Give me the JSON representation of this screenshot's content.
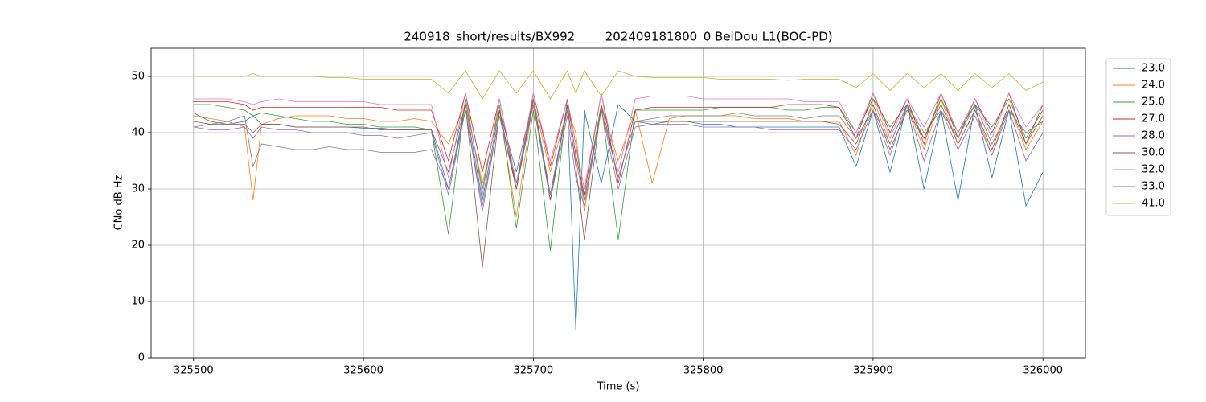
{
  "chart_data": {
    "type": "line",
    "title": "240918_short/results/BX992_____202409181800_0 BeiDou L1(BOC-PD)",
    "x_label": "Time (s)",
    "y_label": "CNo dB Hz",
    "xlim": [
      325475,
      326025
    ],
    "ylim": [
      0,
      55
    ],
    "xticks": [
      325500,
      325600,
      325700,
      325800,
      325900,
      326000
    ],
    "yticks": [
      0,
      10,
      20,
      30,
      40,
      50
    ],
    "grid": true,
    "legend": "outside-upper-right",
    "x": [
      325500,
      325510,
      325520,
      325530,
      325535,
      325540,
      325550,
      325560,
      325570,
      325580,
      325590,
      325600,
      325610,
      325620,
      325630,
      325640,
      325650,
      325660,
      325670,
      325680,
      325690,
      325700,
      325710,
      325720,
      325725,
      325730,
      325740,
      325750,
      325760,
      325770,
      325780,
      325790,
      325800,
      325810,
      325820,
      325830,
      325840,
      325850,
      325860,
      325870,
      325880,
      325890,
      325900,
      325910,
      325920,
      325930,
      325940,
      325950,
      325960,
      325970,
      325980,
      325990,
      326000
    ],
    "series": [
      {
        "name": "23.0",
        "color": "#1f77b4",
        "values": [
          43.5,
          42,
          41.5,
          42,
          43,
          41.5,
          41.5,
          41,
          41,
          41,
          41,
          40.8,
          40.8,
          40.5,
          40.5,
          40.5,
          30,
          45,
          28,
          44,
          33,
          46,
          29,
          45,
          5,
          44,
          31,
          45,
          42,
          41.5,
          42,
          42,
          41.5,
          41.5,
          41,
          41,
          41,
          41,
          41,
          41,
          41,
          34,
          44,
          33,
          45,
          30,
          44,
          28,
          45,
          32,
          44,
          27,
          33
        ]
      },
      {
        "name": "24.0",
        "color": "#ff7f0e",
        "values": [
          43,
          42.5,
          42,
          41,
          28,
          41.5,
          42.5,
          43,
          43,
          43,
          42.5,
          42.5,
          42,
          42,
          42.5,
          42,
          38,
          45,
          31,
          44,
          25,
          46,
          33,
          44,
          40,
          26,
          45,
          35,
          44,
          31,
          42.5,
          43,
          43,
          43,
          43,
          42.5,
          42.5,
          42.5,
          42,
          42,
          42,
          36,
          46,
          38,
          45,
          37,
          46,
          38,
          44,
          36,
          45,
          37,
          42
        ]
      },
      {
        "name": "25.0",
        "color": "#2ca02c",
        "values": [
          45,
          45,
          44.5,
          44,
          43,
          43.5,
          43,
          42.5,
          42,
          42,
          41.5,
          41.5,
          41,
          41,
          41,
          40.5,
          22,
          46,
          30,
          45,
          23,
          44,
          19,
          46,
          38,
          28,
          45,
          21,
          44,
          44,
          44,
          44,
          44,
          44.5,
          44.5,
          44.5,
          44.5,
          44,
          44,
          44.5,
          44.5,
          40,
          46,
          41,
          45,
          39,
          46,
          40,
          45,
          41,
          46,
          39,
          44
        ]
      },
      {
        "name": "27.0",
        "color": "#d62728",
        "values": [
          45.5,
          45.5,
          45.5,
          45,
          44,
          44.5,
          44.5,
          44.5,
          44.5,
          44.5,
          44.5,
          44.5,
          44.5,
          44,
          44,
          44,
          35,
          47,
          33,
          46,
          30,
          47,
          34,
          46,
          36,
          29,
          47,
          31,
          44,
          44.5,
          44.5,
          44.5,
          44.5,
          44.5,
          44.5,
          44.5,
          44.5,
          45,
          45,
          45,
          44.5,
          39,
          47,
          40,
          46,
          38,
          47,
          39,
          46,
          40,
          47,
          38,
          45
        ]
      },
      {
        "name": "28.0",
        "color": "#9467bd",
        "values": [
          41,
          40.5,
          40.5,
          41,
          39,
          41,
          40.5,
          40.5,
          40,
          40,
          40,
          39.5,
          39.5,
          39,
          39.5,
          40,
          29,
          44,
          26,
          43,
          30,
          45,
          28,
          43,
          32,
          27,
          44,
          30,
          41,
          41.5,
          41.5,
          41.5,
          41,
          41,
          41,
          41,
          40.5,
          40.5,
          40.5,
          40.5,
          40.5,
          37,
          44,
          36,
          45,
          35,
          44,
          37,
          43,
          36,
          44,
          35,
          40
        ]
      },
      {
        "name": "30.0",
        "color": "#8c564b",
        "values": [
          42,
          41.5,
          41.5,
          41.5,
          40,
          41.5,
          41.5,
          41,
          41,
          41,
          41,
          41,
          40.5,
          40.5,
          40.5,
          40.5,
          33,
          45,
          16,
          44,
          30,
          46,
          28,
          45,
          34,
          21,
          45,
          32,
          42,
          42,
          42,
          42,
          42,
          42,
          42,
          42,
          42,
          42,
          42,
          42,
          41.5,
          38,
          45,
          37,
          44,
          39,
          45,
          38,
          44,
          37,
          45,
          38,
          43
        ]
      },
      {
        "name": "32.0",
        "color": "#e377c2",
        "values": [
          46,
          46,
          46,
          45.5,
          45,
          45.5,
          46,
          45.5,
          45.5,
          45.5,
          45.5,
          45.5,
          45,
          45,
          45,
          45,
          32,
          47,
          29,
          46,
          31,
          47,
          35,
          46,
          38,
          30,
          47,
          33,
          46,
          46.5,
          46.5,
          46.5,
          46,
          46,
          46,
          46,
          46,
          46,
          45.5,
          45.5,
          45.5,
          40,
          47,
          39,
          46,
          41,
          47,
          40,
          46,
          39,
          47,
          41,
          45
        ]
      },
      {
        "name": "33.0",
        "color": "#7f7f7f",
        "values": [
          41,
          41.5,
          42,
          43,
          34,
          38,
          37.5,
          37,
          37,
          37.5,
          37,
          37,
          36.5,
          36.5,
          36.5,
          37,
          30,
          44,
          27,
          43,
          31,
          45,
          29,
          44,
          35,
          28,
          44,
          32,
          42,
          42.5,
          43,
          43,
          43,
          43,
          43.5,
          43,
          43,
          43,
          42.5,
          43,
          43,
          39,
          44,
          38,
          45,
          40,
          44,
          39,
          45,
          38,
          44,
          40,
          42
        ]
      },
      {
        "name": "41.0",
        "color": "#bcbd22",
        "values": [
          50,
          50,
          50,
          50,
          50.5,
          50,
          50,
          50,
          50,
          49.8,
          49.8,
          49.5,
          49.5,
          49.5,
          49.5,
          49.5,
          47,
          51,
          46,
          51,
          47,
          51,
          46,
          51,
          47,
          51,
          46.5,
          51,
          50,
          49.8,
          49.8,
          49.8,
          49.8,
          49.5,
          49.5,
          49.5,
          49.5,
          49.3,
          49.5,
          49.5,
          49.5,
          48,
          50.5,
          47.5,
          50.5,
          48,
          50.5,
          47.5,
          50.5,
          48,
          50.5,
          47.5,
          49
        ]
      }
    ]
  }
}
